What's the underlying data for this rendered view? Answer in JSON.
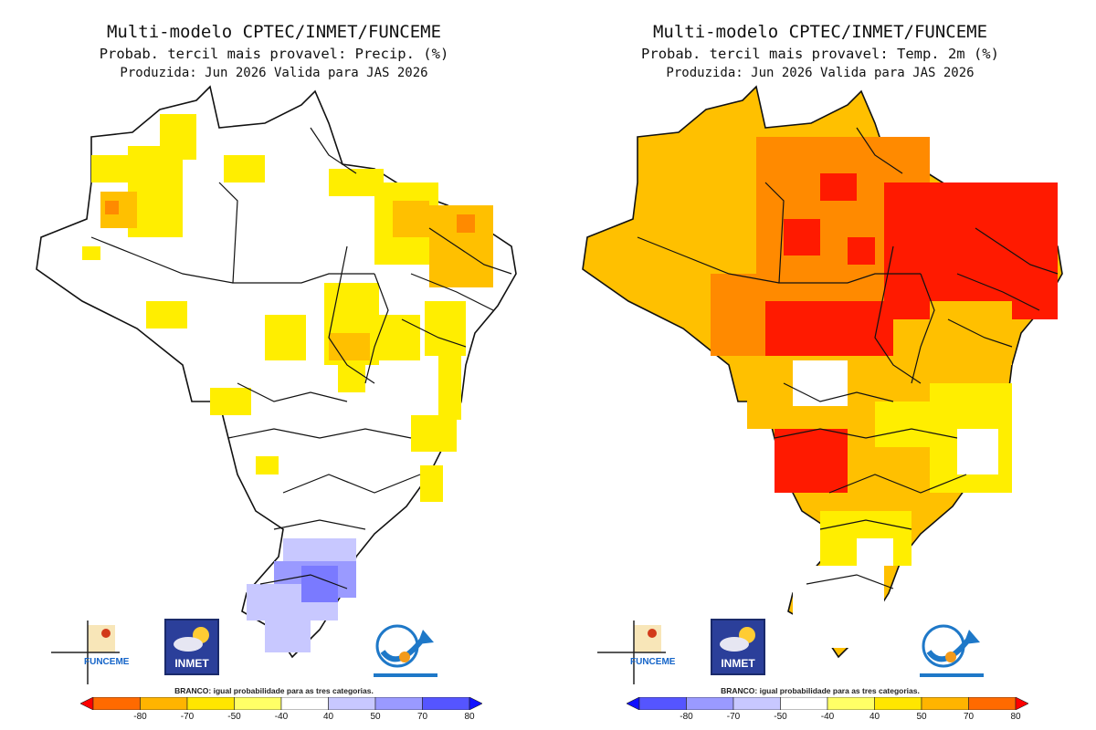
{
  "panels": [
    {
      "id": "precip",
      "title_line1": "Multi-modelo CPTEC/INMET/FUNCEME",
      "title_line2": "Probab. tercil mais provavel: Precip. (%)",
      "title_line3": "Produzida: Jun 2026   Valida para JAS 2026",
      "legend_note": "BRANCO: igual probabilidade para as tres categorias.",
      "scale_labels": [
        "-80",
        "-70",
        "-50",
        "-40",
        "40",
        "50",
        "70",
        "80"
      ],
      "scale_colors": [
        "#ff0000",
        "#ff6a00",
        "#ffb400",
        "#ffe600",
        "#ffff66",
        "#ffffff",
        "#c8c8ff",
        "#9a9aff",
        "#5555ff",
        "#1010ff"
      ],
      "logos": [
        "FUNCEME",
        "INMET",
        "INPE"
      ]
    },
    {
      "id": "temp",
      "title_line1": "Multi-modelo CPTEC/INMET/FUNCEME",
      "title_line2": "Probab. tercil mais provavel: Temp. 2m (%)",
      "title_line3": "Produzida: Jun 2026   Valida para JAS 2026",
      "legend_note": "BRANCO: igual probabilidade para as tres categorias.",
      "scale_labels": [
        "-80",
        "-70",
        "-50",
        "-40",
        "40",
        "50",
        "70",
        "80"
      ],
      "scale_colors": [
        "#1010ff",
        "#5555ff",
        "#9a9aff",
        "#c8c8ff",
        "#ffffff",
        "#ffff66",
        "#ffe600",
        "#ffb400",
        "#ff6a00",
        "#ff0000"
      ],
      "logos": [
        "FUNCEME",
        "INMET",
        "INPE"
      ]
    }
  ],
  "colors": {
    "yellow": "#ffee00",
    "light_yellow": "#ffff66",
    "orange_light": "#ffc000",
    "orange": "#ff8a00",
    "red": "#ff1a00",
    "blue_light": "#c8c8ff",
    "blue": "#9a9aff",
    "border": "#111111"
  }
}
